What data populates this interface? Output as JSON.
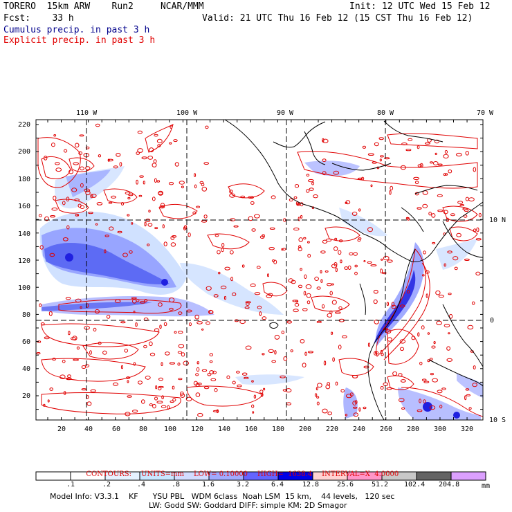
{
  "header": {
    "model": "TORERO  15km ARW    Run2     NCAR/MMM",
    "init": "Init: 12 UTC Wed 15 Feb 12",
    "fcst": "Fcst:    33 h",
    "valid": "Valid: 21 UTC Thu 16 Feb 12 (15 CST Thu 16 Feb 12)",
    "legend_cumulus": "Cumulus precip. in past 3 h",
    "legend_explicit": "Explicit precip. in past 3 h",
    "legend_cumulus_color": "#00008b",
    "legend_explicit_color": "#e00000"
  },
  "map": {
    "lon_labels": [
      "110 W",
      "100 W",
      "90 W",
      "80 W",
      "70 W"
    ],
    "lat_labels": [
      "10 N",
      "0",
      "10 S"
    ],
    "y_ticks": [
      "220",
      "200",
      "180",
      "160",
      "140",
      "120",
      "100",
      "80",
      "60",
      "40",
      "20"
    ],
    "x_ticks": [
      "20",
      "40",
      "60",
      "80",
      "100",
      "120",
      "140",
      "160",
      "180",
      "200",
      "220",
      "240",
      "260",
      "280",
      "300",
      "320"
    ],
    "colors": {
      "contour": "#e00000",
      "coast": "#000000",
      "grid": "#000000",
      "shade_light": "#c8dcff",
      "shade_mid": "#8a96ff",
      "shade_dark": "#2020e0"
    }
  },
  "contours": {
    "label": "CONTOURS:",
    "units": "UNITS=mm",
    "low": "LOW= 0.10000",
    "high": "HIGH=  1638.4",
    "interval": "INTERVAL=X  4.0000"
  },
  "colorbar": {
    "levels": [
      ".1",
      ".2",
      ".4",
      ".8",
      "1.6",
      "3.2",
      "6.4",
      "12.8",
      "25.6",
      "51.2",
      "102.4",
      "204.8"
    ],
    "unit": "mm",
    "colors": [
      "#ffffff",
      "#ffffff",
      "#e6f2ff",
      "#c8e6ff",
      "#d2dcff",
      "#a0aaff",
      "#6464ff",
      "#0000e6",
      "#ffd2d2",
      "#ff96c8",
      "#c8c8c8",
      "#646464",
      "#dca0ff"
    ]
  },
  "footer": {
    "line1": "Model Info: V3.3.1    KF      YSU PBL   WDM 6class  Noah LSM  15 km,    44 levels,   120 sec",
    "line2": "LW: Godd SW: Goddard DIFF: simple KM: 2D Smagor"
  }
}
